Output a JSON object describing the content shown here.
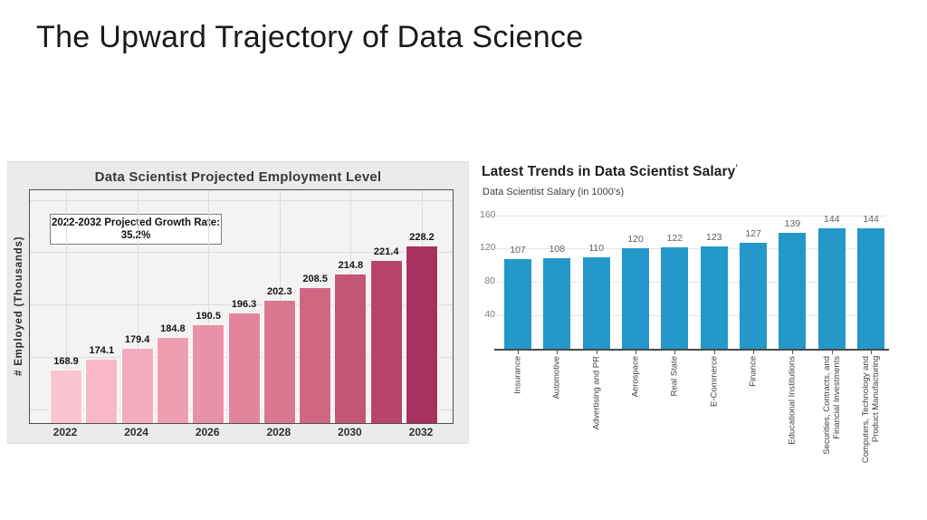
{
  "slide": {
    "title": "The Upward Trajectory of Data Science"
  },
  "chart_data": [
    {
      "type": "bar",
      "title": "Data Scientist Projected Employment Level",
      "ylabel": "# Employed (Thousands)",
      "annotation_line1": "2022-2032 Projected Growth Rate:",
      "annotation_line2": "35.2%",
      "categories": [
        "2022",
        "2023",
        "2024",
        "2025",
        "2026",
        "2027",
        "2028",
        "2029",
        "2030",
        "2031",
        "2032"
      ],
      "values": [
        168.9,
        174.1,
        179.4,
        184.8,
        190.5,
        196.3,
        202.3,
        208.5,
        214.8,
        221.4,
        228.2
      ],
      "x_tick_labels": [
        "2022",
        "2024",
        "2026",
        "2028",
        "2030",
        "2032"
      ],
      "ylim": [
        144,
        255
      ],
      "y_gridlines": [
        150,
        175,
        200,
        225,
        250
      ],
      "grid": true,
      "legend": false,
      "bar_colors": [
        "#fbc4d1",
        "#f8b8c8",
        "#f3abbd",
        "#ef9eb2",
        "#e991a7",
        "#e2849c",
        "#d97690",
        "#cf6783",
        "#c35677",
        "#b74569",
        "#a93160"
      ]
    },
    {
      "type": "bar",
      "title": "Latest Trends in Data Scientist Salary",
      "title_note": "’",
      "subtitle": "Data Scientist Salary (in 1000's)",
      "categories": [
        "Insurance",
        "Automotive",
        "Advertising and PR",
        "Aerospace",
        "Real State",
        "E-Commerce",
        "Finance",
        "Educational Institutions",
        "Securities, Contracts, and\nFinancial Investments",
        "Computers, Technology and\nProduct Manufacturing"
      ],
      "values": [
        107,
        108,
        110,
        120,
        122,
        123,
        127,
        139,
        144,
        144
      ],
      "y_ticks": [
        160,
        120,
        80,
        40
      ],
      "ylim": [
        0,
        178
      ],
      "grid": "horizontal",
      "legend": false,
      "bar_color": "#2398c9"
    }
  ]
}
